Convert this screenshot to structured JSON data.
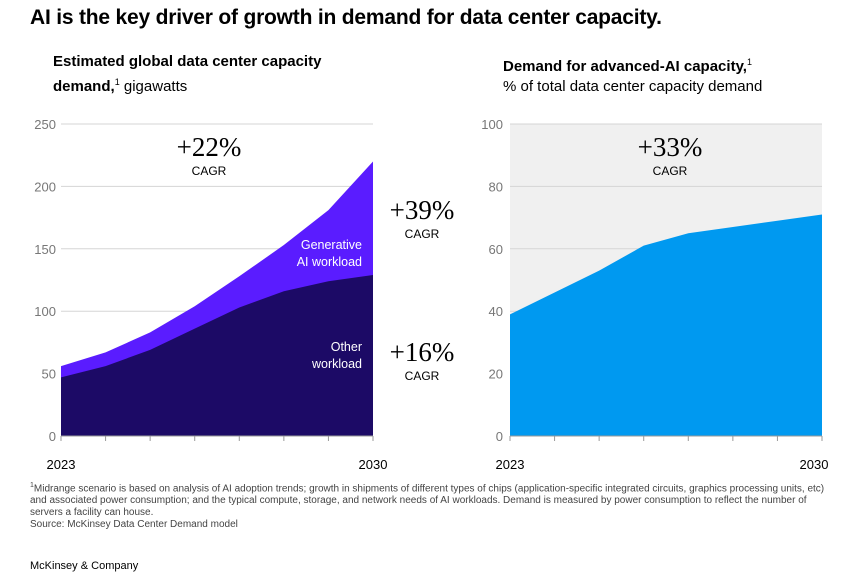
{
  "title": "AI is the key driver of growth in demand for data center capacity.",
  "footnote": {
    "marker": "1",
    "text": "Midrange scenario is based on analysis of AI adoption trends; growth in shipments of different types of chips (application-specific integrated circuits, graphics processing units, etc) and associated power consumption; and the typical compute, storage, and network needs of AI workloads. Demand is measured by power consumption to reflect the number of servers a facility can house.",
    "source": "Source: McKinsey Data Center Demand model"
  },
  "brand": "McKinsey & Company",
  "colors": {
    "generative_ai": "#5A1CFF",
    "other_workload": "#1C0A66",
    "advanced_ai": "#0099F0",
    "panel_bg": "#F0F0F0",
    "grid": "#D5D5D5"
  },
  "chart_data": [
    {
      "type": "area",
      "stacked": true,
      "title": "Estimated global data center capacity demand,",
      "title_footnote": "1",
      "subtitle": "gigawatts",
      "x": [
        2023,
        2024,
        2025,
        2026,
        2027,
        2028,
        2029,
        2030
      ],
      "x_tick_labels": [
        "2023",
        "2030"
      ],
      "ylim": [
        0,
        250
      ],
      "y_ticks": [
        0,
        50,
        100,
        150,
        200,
        250
      ],
      "grid": true,
      "series": [
        {
          "name": "Other workload",
          "name_lines": [
            "Other",
            "workload"
          ],
          "values": [
            47,
            56,
            69,
            86,
            103,
            116,
            124,
            129
          ]
        },
        {
          "name": "Generative AI workload",
          "name_lines": [
            "Generative",
            "AI workload"
          ],
          "values": [
            9,
            11,
            14,
            18,
            25,
            37,
            57,
            91
          ]
        }
      ],
      "annotations": [
        {
          "value": "+22%",
          "label": "CAGR"
        },
        {
          "value": "+39%",
          "label": "CAGR"
        },
        {
          "value": "+16%",
          "label": "CAGR"
        }
      ]
    },
    {
      "type": "area",
      "title": "Demand for advanced-AI capacity,",
      "title_footnote": "1",
      "subtitle": "% of total data center capacity demand",
      "x": [
        2023,
        2024,
        2025,
        2026,
        2027,
        2028,
        2029,
        2030
      ],
      "x_tick_labels": [
        "2023",
        "2030"
      ],
      "ylim": [
        0,
        100
      ],
      "y_ticks": [
        0,
        20,
        40,
        60,
        80,
        100
      ],
      "grid": true,
      "series": [
        {
          "values": [
            39,
            46,
            53,
            61,
            65,
            67,
            69,
            71
          ]
        }
      ],
      "annotations": [
        {
          "value": "+33%",
          "label": "CAGR"
        }
      ]
    }
  ]
}
